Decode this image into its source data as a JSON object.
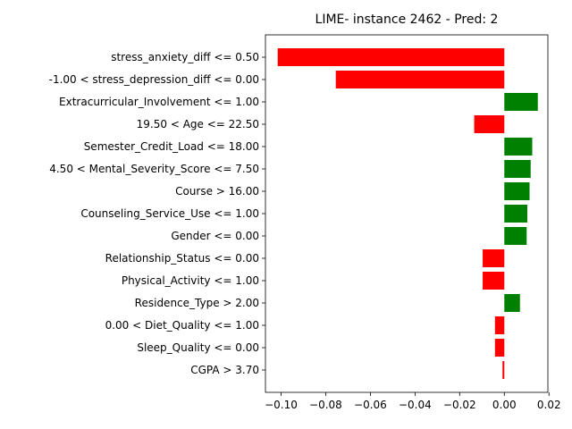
{
  "chart_data": {
    "type": "bar",
    "orientation": "horizontal",
    "title": "LIME- instance 2462 - Pred: 2",
    "xlabel": "",
    "ylabel": "",
    "xlim": [
      -0.107,
      0.0195
    ],
    "xticks": [
      -0.1,
      -0.08,
      -0.06,
      -0.04,
      -0.02,
      0.0,
      0.02
    ],
    "xtick_labels": [
      "−0.10",
      "−0.08",
      "−0.06",
      "−0.04",
      "−0.02",
      "0.00",
      "0.02"
    ],
    "grid": false,
    "colors": {
      "positive": "#008000",
      "negative": "#ff0000"
    },
    "categories": [
      "stress_anxiety_diff <= 0.50",
      "-1.00 < stress_depression_diff <= 0.00",
      "Extracurricular_Involvement <= 1.00",
      "19.50 < Age <= 22.50",
      "Semester_Credit_Load <= 18.00",
      "4.50 < Mental_Severity_Score <= 7.50",
      "Course > 16.00",
      "Counseling_Service_Use <= 1.00",
      "Gender <= 0.00",
      "Relationship_Status <= 0.00",
      "Physical_Activity <= 1.00",
      "Residence_Type > 2.00",
      "0.00 < Diet_Quality <= 1.00",
      "Sleep_Quality <= 0.00",
      "CGPA > 3.70"
    ],
    "values": [
      -0.1015,
      -0.0755,
      0.015,
      -0.0135,
      0.0125,
      0.0118,
      0.0113,
      0.0103,
      0.01,
      -0.0097,
      -0.0097,
      0.007,
      -0.0042,
      -0.0042,
      -0.0008
    ]
  }
}
